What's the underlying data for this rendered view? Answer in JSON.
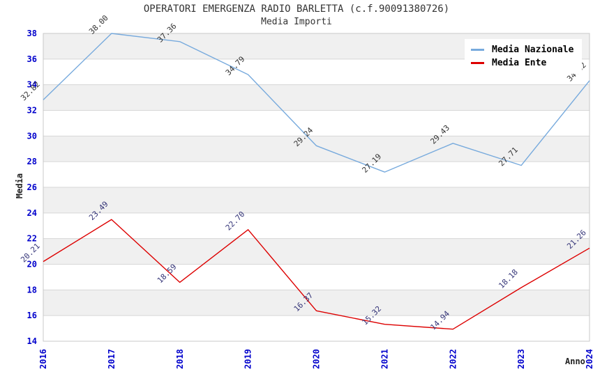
{
  "header": {
    "title": "OPERATORI EMERGENZA RADIO BARLETTA (c.f.90091380726)",
    "subtitle": "Media Importi"
  },
  "chart_data": {
    "type": "line",
    "title": "OPERATORI EMERGENZA RADIO BARLETTA (c.f.90091380726)",
    "subtitle": "Media Importi",
    "xlabel": "Anno",
    "ylabel": "Media",
    "categories": [
      "2016",
      "2017",
      "2018",
      "2019",
      "2020",
      "2021",
      "2022",
      "2023",
      "2024"
    ],
    "series": [
      {
        "name": "Media Nazionale",
        "color": "#77aadd",
        "label_color": "#333333",
        "values": [
          32.82,
          38.0,
          37.36,
          34.79,
          29.24,
          27.19,
          29.43,
          27.71,
          34.32
        ]
      },
      {
        "name": "Media Ente",
        "color": "#dd0000",
        "label_color": "#333377",
        "values": [
          20.21,
          23.49,
          18.59,
          22.7,
          16.37,
          15.32,
          14.94,
          18.18,
          21.26
        ]
      }
    ],
    "ylim": [
      14,
      38
    ],
    "ytick_step": 2,
    "grid": true,
    "legend_position": "top-right",
    "colors": {
      "tick_label": "#0000cc",
      "gridline": "#d6d6d6",
      "band": "#f0f0f0",
      "plot_border": "#c8c8c8",
      "title_text": "#333333"
    }
  }
}
